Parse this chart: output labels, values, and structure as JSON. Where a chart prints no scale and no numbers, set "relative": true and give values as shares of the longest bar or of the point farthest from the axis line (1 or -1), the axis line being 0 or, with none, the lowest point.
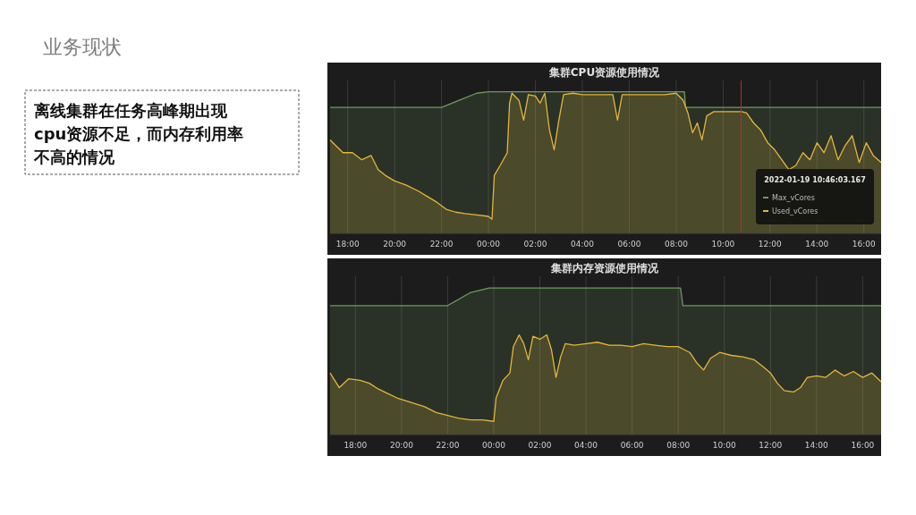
{
  "chart_data": [
    {
      "type": "other",
      "title": "业务现状",
      "annotations": [
        "离线集群在任务高峰期出现",
        "cpu资源不足，而内存利用率",
        "不高的情况"
      ]
    },
    {
      "type": "area",
      "title": "集群CPU资源使用情况",
      "relative": true,
      "grid": "x",
      "legend": "bottom right",
      "xlim": [
        "2022-01-18T17:15",
        "2022-01-19T16:44"
      ],
      "xticks": [
        {
          "value": "2022-01-18T18:00",
          "label": "18:00"
        },
        {
          "value": "2022-01-18T20:00",
          "label": "20:00"
        },
        {
          "value": "2022-01-18T22:00",
          "label": "22:00"
        },
        {
          "value": "2022-01-19T00:00",
          "label": "00:00"
        },
        {
          "value": "2022-01-19T02:00",
          "label": "02:00"
        },
        {
          "value": "2022-01-19T04:00",
          "label": "04:00"
        },
        {
          "value": "2022-01-19T06:00",
          "label": "06:00"
        },
        {
          "value": "2022-01-19T08:00",
          "label": "08:00"
        },
        {
          "value": "2022-01-19T10:00",
          "label": "10:00"
        },
        {
          "value": "2022-01-19T12:00",
          "label": "12:00"
        },
        {
          "value": "2022-01-19T14:00",
          "label": "14:00"
        },
        {
          "value": "2022-01-19T16:00",
          "label": "16:00"
        }
      ],
      "annotations": [
        "2022-01-19 10:46:03.167"
      ],
      "ref_lines": [
        {
          "axis": "x",
          "value": "2022-01-19T10:46",
          "color": "#b03030"
        }
      ],
      "series": [
        {
          "name": "Max_vCores",
          "color": "#6e9a5e",
          "x": [
            "2022-01-18T17:15",
            "2022-01-18T22:00",
            "2022-01-18T23:30",
            "2022-01-19T00:00",
            "2022-01-19T08:21",
            "2022-01-19T08:24",
            "2022-01-19T16:44"
          ],
          "values": [
            0.89,
            0.89,
            0.99,
            1,
            1,
            0.89,
            0.89
          ]
        },
        {
          "name": "Used_vCores",
          "color": "#e5b53c",
          "x": [
            "2022-01-18T17:15",
            "2022-01-18T17:48",
            "2022-01-18T18:12",
            "2022-01-18T18:36",
            "2022-01-18T19:00",
            "2022-01-18T19:18",
            "2022-01-18T19:36",
            "2022-01-18T20:00",
            "2022-01-18T20:30",
            "2022-01-18T21:00",
            "2022-01-18T21:24",
            "2022-01-18T21:48",
            "2022-01-18T22:12",
            "2022-01-18T22:36",
            "2022-01-18T23:00",
            "2022-01-18T23:30",
            "2022-01-19T00:00",
            "2022-01-19T00:09",
            "2022-01-19T00:15",
            "2022-01-19T00:30",
            "2022-01-19T00:48",
            "2022-01-19T00:54",
            "2022-01-19T01:00",
            "2022-01-19T01:18",
            "2022-01-19T01:30",
            "2022-01-19T01:42",
            "2022-01-19T02:00",
            "2022-01-19T02:12",
            "2022-01-19T02:24",
            "2022-01-19T02:36",
            "2022-01-19T02:48",
            "2022-01-19T03:00",
            "2022-01-19T03:12",
            "2022-01-19T03:36",
            "2022-01-19T04:00",
            "2022-01-19T04:30",
            "2022-01-19T05:00",
            "2022-01-19T05:18",
            "2022-01-19T05:30",
            "2022-01-19T05:42",
            "2022-01-19T06:30",
            "2022-01-19T07:30",
            "2022-01-19T08:00",
            "2022-01-19T08:18",
            "2022-01-19T08:30",
            "2022-01-19T08:42",
            "2022-01-19T08:54",
            "2022-01-19T09:06",
            "2022-01-19T09:18",
            "2022-01-19T09:36",
            "2022-01-19T10:00",
            "2022-01-19T10:30",
            "2022-01-19T10:48",
            "2022-01-19T11:00",
            "2022-01-19T11:18",
            "2022-01-19T11:36",
            "2022-01-19T11:54",
            "2022-01-19T12:12",
            "2022-01-19T12:30",
            "2022-01-19T12:48",
            "2022-01-19T13:06",
            "2022-01-19T13:24",
            "2022-01-19T13:42",
            "2022-01-19T14:00",
            "2022-01-19T14:18",
            "2022-01-19T14:36",
            "2022-01-19T14:54",
            "2022-01-19T15:12",
            "2022-01-19T15:30",
            "2022-01-19T15:48",
            "2022-01-19T16:06",
            "2022-01-19T16:24",
            "2022-01-19T16:44"
          ],
          "values": [
            0.66,
            0.57,
            0.57,
            0.52,
            0.55,
            0.45,
            0.41,
            0.37,
            0.34,
            0.3,
            0.26,
            0.22,
            0.17,
            0.15,
            0.14,
            0.13,
            0.12,
            0.1,
            0.41,
            0.48,
            0.57,
            0.92,
            0.99,
            0.94,
            0.8,
            0.98,
            0.97,
            0.92,
            0.99,
            0.73,
            0.59,
            0.8,
            0.98,
            0.99,
            0.98,
            0.98,
            0.98,
            0.98,
            0.8,
            0.98,
            0.98,
            0.98,
            0.99,
            0.94,
            0.85,
            0.71,
            0.78,
            0.66,
            0.83,
            0.86,
            0.86,
            0.86,
            0.86,
            0.85,
            0.78,
            0.73,
            0.64,
            0.59,
            0.52,
            0.45,
            0.48,
            0.57,
            0.52,
            0.64,
            0.57,
            0.69,
            0.52,
            0.62,
            0.69,
            0.5,
            0.64,
            0.55,
            0.5
          ]
        }
      ]
    },
    {
      "type": "area",
      "title": "集群内存资源使用情况",
      "relative": true,
      "grid": "x",
      "xlim": [
        "2022-01-18T16:54",
        "2022-01-19T16:48"
      ],
      "xticks": [
        {
          "value": "2022-01-18T18:00",
          "label": "18:00"
        },
        {
          "value": "2022-01-18T20:00",
          "label": "20:00"
        },
        {
          "value": "2022-01-18T22:00",
          "label": "22:00"
        },
        {
          "value": "2022-01-19T00:00",
          "label": "00:00"
        },
        {
          "value": "2022-01-19T02:00",
          "label": "02:00"
        },
        {
          "value": "2022-01-19T04:00",
          "label": "04:00"
        },
        {
          "value": "2022-01-19T06:00",
          "label": "06:00"
        },
        {
          "value": "2022-01-19T08:00",
          "label": "08:00"
        },
        {
          "value": "2022-01-19T10:00",
          "label": "10:00"
        },
        {
          "value": "2022-01-19T12:00",
          "label": "12:00"
        },
        {
          "value": "2022-01-19T14:00",
          "label": "14:00"
        },
        {
          "value": "2022-01-19T16:00",
          "label": "16:00"
        }
      ],
      "series": [
        {
          "color": "#6e9a5e",
          "x": [
            "2022-01-18T16:54",
            "2022-01-18T22:00",
            "2022-01-18T23:00",
            "2022-01-18T23:48",
            "2022-01-19T08:06",
            "2022-01-19T08:12",
            "2022-01-19T16:48"
          ],
          "values": [
            0.88,
            0.88,
            0.97,
            1,
            1,
            0.88,
            0.88
          ]
        },
        {
          "color": "#e5b53c",
          "x": [
            "2022-01-18T16:54",
            "2022-01-18T17:18",
            "2022-01-18T17:42",
            "2022-01-18T18:12",
            "2022-01-18T18:36",
            "2022-01-18T19:00",
            "2022-01-18T19:24",
            "2022-01-18T19:48",
            "2022-01-18T20:12",
            "2022-01-18T20:36",
            "2022-01-18T21:00",
            "2022-01-18T21:30",
            "2022-01-18T22:00",
            "2022-01-18T22:30",
            "2022-01-18T23:00",
            "2022-01-18T23:30",
            "2022-01-19T00:00",
            "2022-01-19T00:06",
            "2022-01-19T00:24",
            "2022-01-19T00:42",
            "2022-01-19T00:51",
            "2022-01-19T01:06",
            "2022-01-19T01:18",
            "2022-01-19T01:30",
            "2022-01-19T01:42",
            "2022-01-19T02:00",
            "2022-01-19T02:18",
            "2022-01-19T02:30",
            "2022-01-19T02:42",
            "2022-01-19T02:54",
            "2022-01-19T03:06",
            "2022-01-19T03:30",
            "2022-01-19T04:00",
            "2022-01-19T04:30",
            "2022-01-19T05:00",
            "2022-01-19T05:30",
            "2022-01-19T06:00",
            "2022-01-19T06:30",
            "2022-01-19T07:00",
            "2022-01-19T07:30",
            "2022-01-19T08:00",
            "2022-01-19T08:30",
            "2022-01-19T08:48",
            "2022-01-19T09:06",
            "2022-01-19T09:24",
            "2022-01-19T09:48",
            "2022-01-19T10:18",
            "2022-01-19T10:48",
            "2022-01-19T11:18",
            "2022-01-19T11:42",
            "2022-01-19T12:00",
            "2022-01-19T12:18",
            "2022-01-19T12:36",
            "2022-01-19T13:00",
            "2022-01-19T13:18",
            "2022-01-19T13:36",
            "2022-01-19T14:00",
            "2022-01-19T14:24",
            "2022-01-19T14:48",
            "2022-01-19T15:12",
            "2022-01-19T15:36",
            "2022-01-19T16:00",
            "2022-01-19T16:24",
            "2022-01-19T16:48"
          ],
          "values": [
            0.42,
            0.32,
            0.38,
            0.37,
            0.35,
            0.31,
            0.28,
            0.25,
            0.23,
            0.21,
            0.19,
            0.15,
            0.13,
            0.11,
            0.1,
            0.1,
            0.09,
            0.25,
            0.37,
            0.42,
            0.6,
            0.68,
            0.62,
            0.51,
            0.67,
            0.65,
            0.68,
            0.58,
            0.39,
            0.53,
            0.62,
            0.61,
            0.62,
            0.63,
            0.61,
            0.61,
            0.6,
            0.62,
            0.61,
            0.6,
            0.6,
            0.56,
            0.49,
            0.44,
            0.52,
            0.56,
            0.54,
            0.53,
            0.51,
            0.46,
            0.42,
            0.35,
            0.3,
            0.29,
            0.32,
            0.39,
            0.4,
            0.39,
            0.44,
            0.4,
            0.43,
            0.39,
            0.42,
            0.36
          ]
        }
      ]
    }
  ]
}
